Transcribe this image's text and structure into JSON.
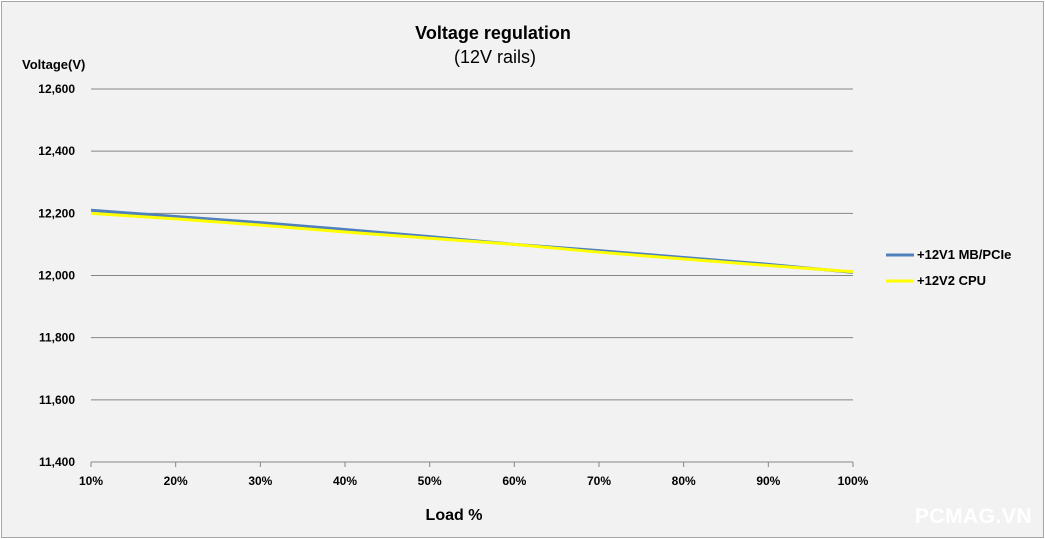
{
  "chart_data": {
    "type": "line",
    "title": "Voltage regulation",
    "subtitle": "(12V rails)",
    "ylabel": "Voltage(V)",
    "xlabel": "Load %",
    "categories": [
      "10%",
      "20%",
      "30%",
      "40%",
      "50%",
      "60%",
      "70%",
      "80%",
      "90%",
      "100%"
    ],
    "ylim": [
      11400,
      12600
    ],
    "yticks": [
      11400,
      11600,
      11800,
      12000,
      12200,
      12400,
      12600
    ],
    "ytick_labels": [
      "11,400",
      "11,600",
      "11,800",
      "12,000",
      "12,200",
      "12,400",
      "12,600"
    ],
    "grid": true,
    "legend_position": "right",
    "series": [
      {
        "name": "+12V1 MB/PCIe",
        "color": "#4f81bd",
        "values": [
          12210,
          12190,
          12170,
          12148,
          12125,
          12100,
          12080,
          12058,
          12036,
          12010
        ]
      },
      {
        "name": "+12V2 CPU",
        "color": "#ffff00",
        "values": [
          12200,
          12182,
          12162,
          12140,
          12120,
          12100,
          12075,
          12053,
          12032,
          12012
        ]
      }
    ]
  },
  "watermark": "PCMAG.VN"
}
